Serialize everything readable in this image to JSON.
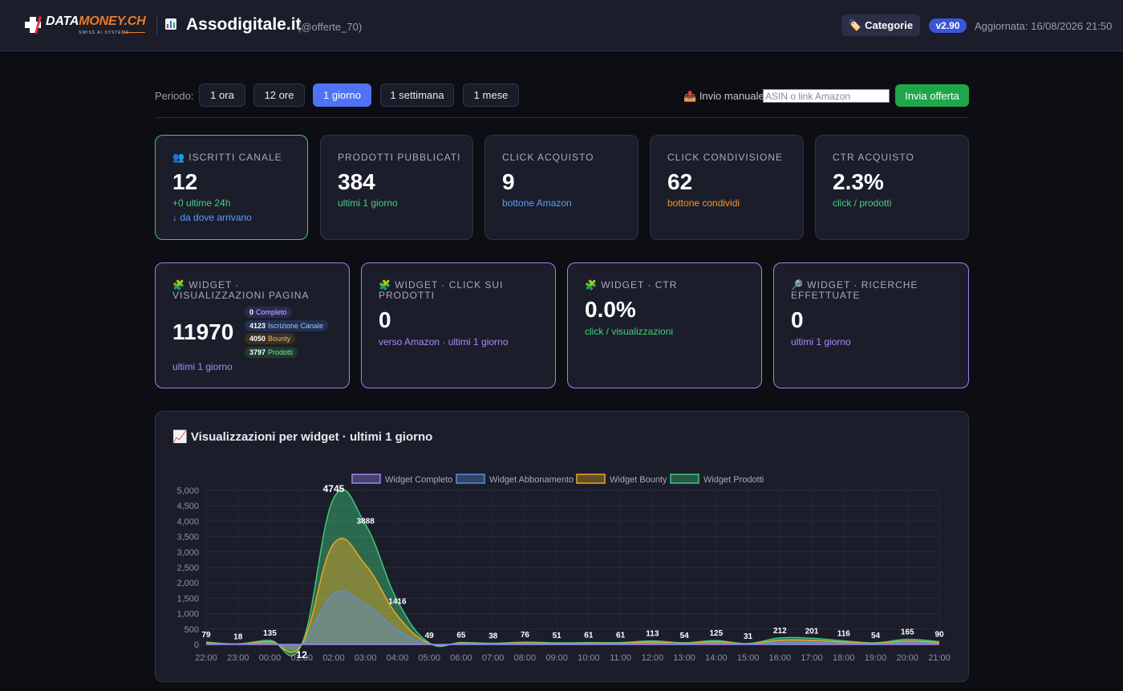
{
  "header": {
    "logo_word_a": "DATA",
    "logo_word_b": "MONEY.CH",
    "logo_tagline": "SWISS AI SYSTEMS",
    "site_title": "Assodigitale.it",
    "site_handle": "(@offerte_70)",
    "categories_label": "Categorie",
    "version": "v2.90",
    "updated": "Aggiornata: 16/08/2026 21:50"
  },
  "period": {
    "label": "Periodo:",
    "options": [
      "1 ora",
      "12 ore",
      "1 giorno",
      "1 settimana",
      "1 mese"
    ],
    "selected": "1 giorno"
  },
  "manual": {
    "label": "Invio manuale",
    "placeholder": "ASIN o link Amazon",
    "submit_label": "Invia offerta"
  },
  "stats": [
    {
      "label": "Iscritti canale",
      "icon": "users-icon",
      "value": "12",
      "sub": "+0 ultime 24h",
      "sub2": "↓ da dove arrivano"
    },
    {
      "label": "Prodotti pubblicati",
      "value": "384",
      "sub": "ultimi 1 giorno"
    },
    {
      "label": "Click acquisto",
      "value": "9",
      "sub": "bottone Amazon"
    },
    {
      "label": "Click condivisione",
      "value": "62",
      "sub": "bottone condividi"
    },
    {
      "label": "CTR acquisto",
      "value": "2.3%",
      "sub": "click / prodotti"
    }
  ],
  "widgets": [
    {
      "label": "Widget · visualizzazioni pagina",
      "icon": "puzzle-icon",
      "value": "11970",
      "sub": "ultimi 1 giorno",
      "breakdown": [
        {
          "value": "0",
          "label": "Completo"
        },
        {
          "value": "4123",
          "label": "Iscrizione Canale"
        },
        {
          "value": "4050",
          "label": "Bounty"
        },
        {
          "value": "3797",
          "label": "Prodotti"
        }
      ]
    },
    {
      "label": "Widget · click sui prodotti",
      "icon": "puzzle-icon",
      "value": "0",
      "sub": "verso Amazon · ultimi 1 giorno"
    },
    {
      "label": "Widget · CTR",
      "icon": "puzzle-icon",
      "value": "0.0%",
      "sub": "click / visualizzazioni"
    },
    {
      "label": "Widget · ricerche effettuate",
      "icon": "magnifier-icon",
      "value": "0",
      "sub": "ultimi 1 giorno"
    }
  ],
  "chart_title": "Visualizzazioni per widget · ultimi 1 giorno",
  "chart_data": {
    "type": "area",
    "stacked": true,
    "x": [
      "22:00",
      "23:00",
      "00:00",
      "01:00",
      "02:00",
      "03:00",
      "04:00",
      "05:00",
      "06:00",
      "07:00",
      "08:00",
      "09:00",
      "10:00",
      "11:00",
      "12:00",
      "13:00",
      "14:00",
      "15:00",
      "16:00",
      "17:00",
      "18:00",
      "19:00",
      "20:00",
      "21:00"
    ],
    "series": [
      {
        "name": "Widget Completo",
        "color": "#9d86e9",
        "values": [
          0,
          0,
          0,
          0,
          0,
          0,
          0,
          0,
          0,
          0,
          0,
          0,
          0,
          0,
          0,
          0,
          0,
          0,
          0,
          0,
          0,
          0,
          0,
          0
        ]
      },
      {
        "name": "Widget Abbonamento",
        "color": "#5b8fd6",
        "values": [
          27,
          6,
          45,
          4,
          1650,
          1300,
          470,
          16,
          22,
          13,
          25,
          17,
          20,
          20,
          38,
          18,
          42,
          10,
          70,
          67,
          39,
          18,
          55,
          30
        ]
      },
      {
        "name": "Widget Bounty",
        "color": "#e9a826",
        "values": [
          26,
          6,
          45,
          4,
          1620,
          1280,
          465,
          17,
          21,
          13,
          25,
          17,
          20,
          20,
          38,
          18,
          42,
          10,
          71,
          67,
          39,
          18,
          55,
          30
        ]
      },
      {
        "name": "Widget Prodotti",
        "color": "#3fc77a",
        "values": [
          26,
          6,
          45,
          4,
          1475,
          1308,
          481,
          16,
          22,
          12,
          26,
          17,
          21,
          21,
          37,
          18,
          41,
          11,
          71,
          67,
          38,
          18,
          55,
          30
        ]
      }
    ],
    "totals": [
      79,
      18,
      135,
      12,
      4745,
      3888,
      1416,
      49,
      65,
      38,
      76,
      51,
      61,
      61,
      113,
      54,
      125,
      31,
      212,
      201,
      116,
      54,
      165,
      90
    ],
    "ylim": [
      0,
      5000
    ],
    "yticks": [
      0,
      500,
      1000,
      1500,
      2000,
      2500,
      3000,
      3500,
      4000,
      4500,
      5000
    ],
    "legend": "top-center",
    "grid": true
  }
}
